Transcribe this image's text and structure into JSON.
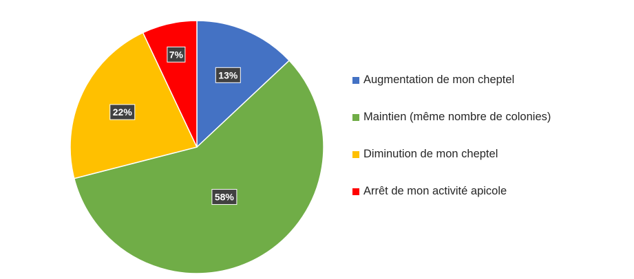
{
  "chart_data": {
    "type": "pie",
    "title": "",
    "legend_position": "right",
    "categories": [
      "Augmentation de mon cheptel",
      "Maintien (même nombre de colonies)",
      "Diminution de mon cheptel",
      "Arrêt de mon activité apicole"
    ],
    "values": [
      13,
      58,
      22,
      7
    ],
    "data_labels": [
      "13%",
      "58%",
      "22%",
      "7%"
    ],
    "colors": [
      "#4472C4",
      "#70AD47",
      "#FFC000",
      "#FF0000"
    ]
  }
}
